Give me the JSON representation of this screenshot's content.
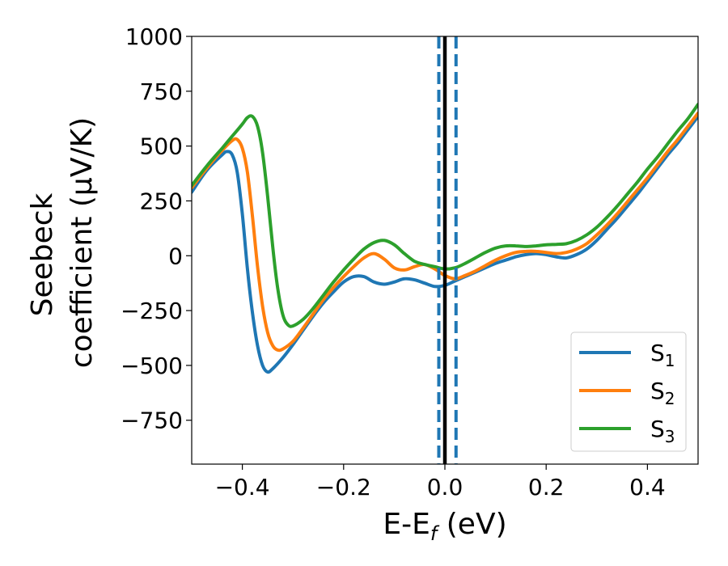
{
  "chart_data": {
    "type": "line",
    "xlabel_main": "E-E",
    "xlabel_sub": "f",
    "xlabel_unit": " (eV)",
    "ylabel_line1": "Seebeck",
    "ylabel_line2": "coefficient  (μV/K)",
    "xlim": [
      -0.5,
      0.5
    ],
    "ylim": [
      -950,
      1000
    ],
    "xticks": [
      -0.4,
      -0.2,
      0.0,
      0.2,
      0.4
    ],
    "xtick_labels": [
      "−0.4",
      "−0.2",
      "0.0",
      "0.2",
      "0.4"
    ],
    "yticks": [
      1000,
      750,
      500,
      250,
      0,
      -250,
      -500,
      -750
    ],
    "ytick_labels": [
      "1000",
      "750",
      "500",
      "250",
      "0",
      "−250",
      "−500",
      "−750"
    ],
    "legend_position": "lower-right",
    "series": [
      {
        "name": "S",
        "sub": "1",
        "color": "#1f77b4",
        "x": [
          -0.5,
          -0.47,
          -0.44,
          -0.43,
          -0.42,
          -0.41,
          -0.4,
          -0.39,
          -0.38,
          -0.37,
          -0.36,
          -0.35,
          -0.34,
          -0.32,
          -0.3,
          -0.28,
          -0.26,
          -0.24,
          -0.22,
          -0.2,
          -0.18,
          -0.16,
          -0.14,
          -0.12,
          -0.1,
          -0.08,
          -0.06,
          -0.04,
          -0.02,
          0.0,
          0.02,
          0.04,
          0.06,
          0.08,
          0.1,
          0.12,
          0.14,
          0.16,
          0.18,
          0.2,
          0.22,
          0.24,
          0.26,
          0.28,
          0.3,
          0.32,
          0.34,
          0.36,
          0.38,
          0.4,
          0.42,
          0.44,
          0.46,
          0.48,
          0.5
        ],
        "y": [
          290,
          390,
          460,
          475,
          460,
          380,
          190,
          -60,
          -260,
          -410,
          -500,
          -530,
          -515,
          -465,
          -405,
          -340,
          -275,
          -215,
          -165,
          -120,
          -95,
          -95,
          -120,
          -130,
          -120,
          -105,
          -110,
          -125,
          -140,
          -135,
          -115,
          -95,
          -75,
          -55,
          -35,
          -20,
          -5,
          5,
          10,
          5,
          -5,
          -10,
          5,
          30,
          70,
          120,
          170,
          225,
          280,
          340,
          400,
          460,
          515,
          575,
          635
        ]
      },
      {
        "name": "S",
        "sub": "2",
        "color": "#ff7f0e",
        "x": [
          -0.5,
          -0.47,
          -0.44,
          -0.42,
          -0.41,
          -0.4,
          -0.39,
          -0.38,
          -0.37,
          -0.36,
          -0.35,
          -0.34,
          -0.33,
          -0.32,
          -0.3,
          -0.28,
          -0.26,
          -0.24,
          -0.22,
          -0.2,
          -0.18,
          -0.16,
          -0.14,
          -0.12,
          -0.1,
          -0.08,
          -0.06,
          -0.04,
          -0.02,
          0.0,
          0.02,
          0.04,
          0.06,
          0.08,
          0.1,
          0.12,
          0.14,
          0.16,
          0.18,
          0.2,
          0.22,
          0.24,
          0.26,
          0.28,
          0.3,
          0.32,
          0.34,
          0.36,
          0.38,
          0.4,
          0.42,
          0.44,
          0.46,
          0.48,
          0.5
        ],
        "y": [
          310,
          400,
          480,
          525,
          530,
          490,
          380,
          180,
          -50,
          -230,
          -350,
          -410,
          -430,
          -425,
          -390,
          -330,
          -265,
          -200,
          -145,
          -95,
          -50,
          -10,
          10,
          -15,
          -55,
          -65,
          -50,
          -40,
          -60,
          -90,
          -105,
          -90,
          -70,
          -45,
          -20,
          0,
          15,
          20,
          20,
          15,
          10,
          15,
          30,
          55,
          95,
          140,
          190,
          245,
          300,
          355,
          415,
          475,
          530,
          590,
          650
        ]
      },
      {
        "name": "S",
        "sub": "3",
        "color": "#2ca02c",
        "x": [
          -0.5,
          -0.47,
          -0.44,
          -0.42,
          -0.4,
          -0.39,
          -0.38,
          -0.37,
          -0.36,
          -0.35,
          -0.34,
          -0.33,
          -0.32,
          -0.31,
          -0.3,
          -0.28,
          -0.26,
          -0.24,
          -0.22,
          -0.2,
          -0.18,
          -0.16,
          -0.14,
          -0.12,
          -0.1,
          -0.08,
          -0.06,
          -0.04,
          -0.02,
          0.0,
          0.02,
          0.04,
          0.06,
          0.08,
          0.1,
          0.12,
          0.14,
          0.16,
          0.18,
          0.2,
          0.22,
          0.24,
          0.26,
          0.28,
          0.3,
          0.32,
          0.34,
          0.36,
          0.38,
          0.4,
          0.42,
          0.44,
          0.46,
          0.48,
          0.5
        ],
        "y": [
          320,
          410,
          490,
          545,
          600,
          630,
          635,
          590,
          470,
          270,
          40,
          -150,
          -270,
          -315,
          -320,
          -290,
          -240,
          -180,
          -120,
          -65,
          -15,
          30,
          60,
          70,
          50,
          10,
          -25,
          -40,
          -50,
          -60,
          -55,
          -35,
          -10,
          15,
          35,
          45,
          45,
          42,
          45,
          50,
          52,
          55,
          70,
          95,
          130,
          175,
          225,
          280,
          335,
          395,
          450,
          510,
          570,
          625,
          690
        ]
      }
    ],
    "vlines": [
      {
        "x": 0.0,
        "color": "#000000",
        "style": "solid"
      },
      {
        "x": -0.012,
        "color": "#1f77b4",
        "style": "dashed"
      },
      {
        "x": 0.022,
        "color": "#1f77b4",
        "style": "dashed"
      }
    ]
  }
}
